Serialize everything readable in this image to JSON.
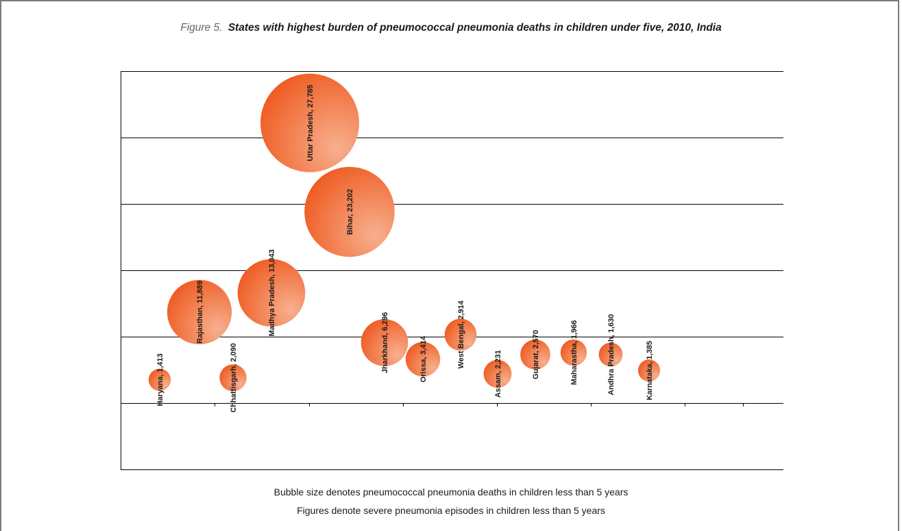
{
  "title": {
    "prefix": "Figure 5.",
    "text": "States with highest burden of pneumococcal pneumonia deaths in children under five, 2010, India"
  },
  "notes": {
    "line1": "Bubble size denotes pneumococcal pneumonia deaths in children less than 5 years",
    "line2": "Figures denote severe pneumonia episodes in children less than 5 years"
  },
  "colors": {
    "bubble_dark": "#ef5a20",
    "bubble_light": "#f7b08f",
    "gridline": "#000000",
    "frame": "#7a7a7a"
  },
  "chart_data": {
    "type": "bubble",
    "title": "States with highest burden of pneumococcal pneumonia deaths in children under five, 2010, India",
    "xlabel": "",
    "ylabel": "",
    "grid": true,
    "points": [
      {
        "label": "Haryana, 1,413",
        "state": "Haryana",
        "value": 1413,
        "y": 0.35
      },
      {
        "label": "Rajasthan, 11,889",
        "state": "Rajasthan",
        "value": 11889,
        "y": 1.37
      },
      {
        "label": "Chhattisgarh, 2,090",
        "state": "Chhattisgarh",
        "value": 2090,
        "y": 0.38
      },
      {
        "label": "Madhya Pradesh, 13,043",
        "state": "Madhya Pradesh",
        "value": 13043,
        "y": 1.66
      },
      {
        "label": "Uttar Pradesh, 27,785",
        "state": "Uttar Pradesh",
        "value": 27785,
        "y": 4.22
      },
      {
        "label": "Bihar, 23,202",
        "state": "Bihar",
        "value": 23202,
        "y": 2.88
      },
      {
        "label": "Jharkhand, 6,296",
        "state": "Jharkhand",
        "value": 6296,
        "y": 0.91
      },
      {
        "label": "Orissa, 3,414",
        "state": "Orissa",
        "value": 3414,
        "y": 0.66
      },
      {
        "label": "West Bengal, 2,914",
        "state": "West Bengal",
        "value": 2914,
        "y": 1.03
      },
      {
        "label": "Assam, 2,231",
        "state": "Assam",
        "value": 2231,
        "y": 0.44
      },
      {
        "label": "Gujarat, 2,570",
        "state": "Gujarat",
        "value": 2570,
        "y": 0.73
      },
      {
        "label": "Maharastha, 1,966",
        "state": "Maharastha",
        "value": 1966,
        "y": 0.76
      },
      {
        "label": "Andhra Pradesh, 1,630",
        "state": "Andhra Pradesh",
        "value": 1630,
        "y": 0.73
      },
      {
        "label": "Karnataka, 1,385",
        "state": "Karnataka",
        "value": 1385,
        "y": 0.49
      }
    ]
  }
}
